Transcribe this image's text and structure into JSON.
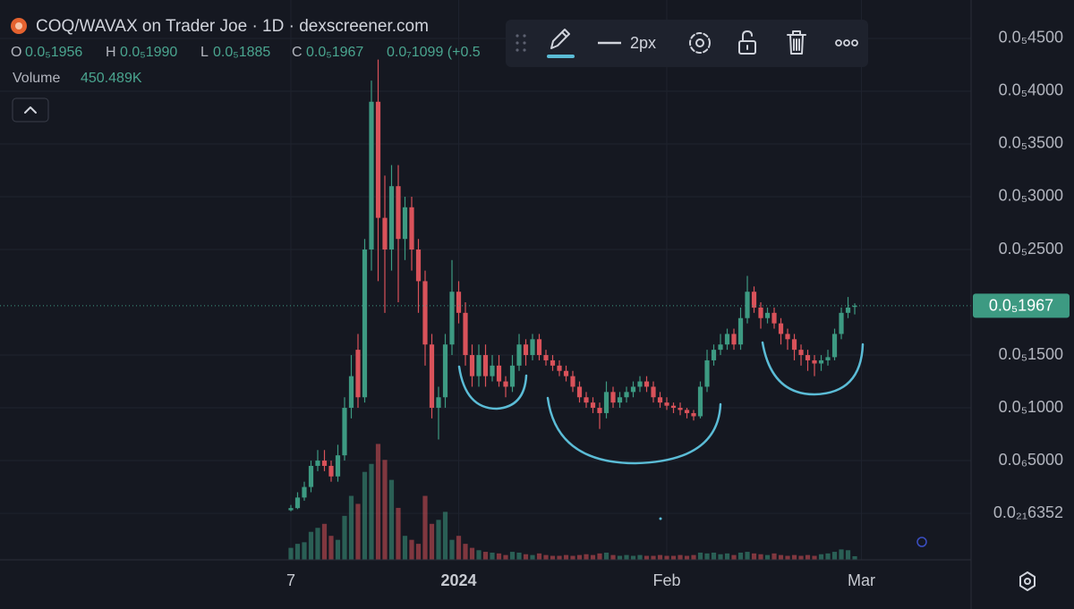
{
  "chart_data": {
    "type": "candlestick",
    "title": "COQ/WAVAX on Trader Joe · 1D · dexscreener.com",
    "legend": {
      "open_label": "O",
      "open": "0.0₅1956",
      "high_label": "H",
      "high": "0.0₅1990",
      "low_label": "L",
      "low": "0.0₅1885",
      "close_label": "C",
      "close": "0.0₅1967",
      "change": "0.0₇1099 (+0.5"
    },
    "volume_label": "Volume",
    "volume_value": "450.489K",
    "toolbar_width": "2px",
    "last_price_label": "0.0₅1967",
    "up_color": "#3d9a82",
    "down_color": "#d9525a",
    "grid": true,
    "categories": [
      null,
      null,
      null,
      null,
      null,
      null,
      null,
      null,
      null,
      null,
      null,
      null,
      null,
      null,
      null,
      null,
      null,
      null,
      null,
      null,
      null,
      null,
      null,
      null,
      null,
      null,
      null,
      null,
      null,
      null,
      null,
      null,
      null,
      null,
      null,
      null,
      null,
      null,
      null,
      null,
      null,
      null,
      null,
      null,
      null,
      null,
      null,
      null,
      null,
      null,
      null,
      null,
      null,
      null,
      null,
      null,
      null,
      null,
      null,
      null,
      null,
      null,
      null,
      null,
      null,
      null,
      null,
      null,
      null,
      null,
      null,
      null,
      null,
      null,
      null,
      null,
      null,
      null,
      null,
      null,
      null,
      null,
      null,
      null,
      null
    ],
    "open": [
      3e-08,
      5e-08,
      1.5e-07,
      2.5e-07,
      4.5e-07,
      5e-07,
      4.5e-07,
      3.5e-07,
      5.5e-07,
      1e-06,
      1.55e-06,
      1.1e-06,
      2.5e-06,
      3.9e-06,
      2.8e-06,
      2.5e-06,
      3.1e-06,
      2.6e-06,
      2.9e-06,
      2.5e-06,
      2.2e-06,
      1.6e-06,
      1e-06,
      1.1e-06,
      1.6e-06,
      2.1e-06,
      1.9e-06,
      1.5e-06,
      1.3e-06,
      1.5e-06,
      1.3e-06,
      1.4e-06,
      1.25e-06,
      1.2e-06,
      1.4e-06,
      1.6e-06,
      1.5e-06,
      1.65e-06,
      1.5e-06,
      1.45e-06,
      1.4e-06,
      1.35e-06,
      1.3e-06,
      1.2e-06,
      1.1e-06,
      1.05e-06,
      1e-06,
      9.5e-07,
      1.15e-06,
      1.05e-06,
      1.1e-06,
      1.15e-06,
      1.2e-06,
      1.25e-06,
      1.2e-06,
      1.1e-06,
      1.05e-06,
      1.02e-06,
      1e-06,
      9.8e-07,
      9.5e-07,
      9.2e-07,
      1.2e-06,
      1.45e-06,
      1.55e-06,
      1.6e-06,
      1.7e-06,
      1.6e-06,
      1.85e-06,
      2.1e-06,
      1.95e-06,
      1.85e-06,
      1.9e-06,
      1.8e-06,
      1.7e-06,
      1.65e-06,
      1.55e-06,
      1.5e-06,
      1.45e-06,
      1.42e-06,
      1.45e-06,
      1.48e-06,
      1.7e-06,
      1.9e-06,
      1.956e-06
    ],
    "high": [
      8e-08,
      2e-07,
      3e-07,
      5e-07,
      6e-07,
      6e-07,
      5e-07,
      6.5e-07,
      1.1e-06,
      1.5e-06,
      1.7e-06,
      2.6e-06,
      4.1e-06,
      4.3e-06,
      3.2e-06,
      3.3e-06,
      3.3e-06,
      3e-06,
      3e-06,
      2.6e-06,
      2.3e-06,
      1.7e-06,
      1.2e-06,
      1.7e-06,
      2.4e-06,
      2.2e-06,
      2e-06,
      1.6e-06,
      1.6e-06,
      1.6e-06,
      1.5e-06,
      1.5e-06,
      1.3e-06,
      1.5e-06,
      1.7e-06,
      1.65e-06,
      1.7e-06,
      1.7e-06,
      1.55e-06,
      1.5e-06,
      1.45e-06,
      1.4e-06,
      1.35e-06,
      1.25e-06,
      1.15e-06,
      1.1e-06,
      1.05e-06,
      1.25e-06,
      1.2e-06,
      1.15e-06,
      1.2e-06,
      1.25e-06,
      1.3e-06,
      1.3e-06,
      1.25e-06,
      1.15e-06,
      1.1e-06,
      1.05e-06,
      1.05e-06,
      1e-06,
      9.8e-07,
      1.25e-06,
      1.55e-06,
      1.6e-06,
      1.7e-06,
      1.75e-06,
      1.75e-06,
      1.95e-06,
      2.25e-06,
      2.15e-06,
      2e-06,
      1.95e-06,
      1.95e-06,
      1.85e-06,
      1.75e-06,
      1.7e-06,
      1.6e-06,
      1.55e-06,
      1.5e-06,
      1.5e-06,
      1.55e-06,
      1.75e-06,
      1.95e-06,
      2.05e-06,
      1.99e-06
    ],
    "low": [
      2e-08,
      4e-08,
      1.2e-07,
      2e-07,
      4e-07,
      4e-07,
      3e-07,
      3e-07,
      5e-07,
      9e-07,
      1e-06,
      1.05e-06,
      2.3e-06,
      2.2e-06,
      1.9e-06,
      2.3e-06,
      2e-06,
      2.4e-06,
      2.3e-06,
      1.9e-06,
      1.4e-06,
      9e-07,
      7e-07,
      1e-06,
      1.5e-06,
      1.8e-06,
      1.4e-06,
      1.2e-06,
      1.2e-06,
      1.2e-06,
      1.25e-06,
      1.2e-06,
      1.1e-06,
      1.15e-06,
      1.35e-06,
      1.4e-06,
      1.45e-06,
      1.45e-06,
      1.4e-06,
      1.35e-06,
      1.3e-06,
      1.25e-06,
      1.15e-06,
      1.05e-06,
      1e-06,
      9.5e-07,
      8e-07,
      9e-07,
      1e-06,
      1e-06,
      1.05e-06,
      1.1e-06,
      1.15e-06,
      1.15e-06,
      1.05e-06,
      1e-06,
      9.8e-07,
      9.5e-07,
      9.3e-07,
      9e-07,
      8.8e-07,
      9e-07,
      1.15e-06,
      1.4e-06,
      1.5e-06,
      1.55e-06,
      1.55e-06,
      1.55e-06,
      1.8e-06,
      1.9e-06,
      1.75e-06,
      1.8e-06,
      1.75e-06,
      1.6e-06,
      1.55e-06,
      1.45e-06,
      1.4e-06,
      1.35e-06,
      1.3e-06,
      1.35e-06,
      1.4e-06,
      1.45e-06,
      1.65e-06,
      1.85e-06,
      1.885e-06
    ],
    "close": [
      5e-08,
      1.5e-07,
      2.5e-07,
      4.5e-07,
      5e-07,
      4.5e-07,
      3.5e-07,
      5.5e-07,
      1e-06,
      1.3e-06,
      1.1e-06,
      2.5e-06,
      3.9e-06,
      2.8e-06,
      2.5e-06,
      3.1e-06,
      2.6e-06,
      2.9e-06,
      2.5e-06,
      2.2e-06,
      1.6e-06,
      1e-06,
      1.1e-06,
      1.6e-06,
      2.1e-06,
      1.9e-06,
      1.5e-06,
      1.3e-06,
      1.5e-06,
      1.3e-06,
      1.4e-06,
      1.25e-06,
      1.2e-06,
      1.4e-06,
      1.6e-06,
      1.5e-06,
      1.65e-06,
      1.5e-06,
      1.45e-06,
      1.4e-06,
      1.35e-06,
      1.3e-06,
      1.2e-06,
      1.1e-06,
      1.05e-06,
      1e-06,
      9.5e-07,
      1.15e-06,
      1.05e-06,
      1.1e-06,
      1.15e-06,
      1.2e-06,
      1.25e-06,
      1.2e-06,
      1.1e-06,
      1.05e-06,
      1.02e-06,
      1e-06,
      9.8e-07,
      9.5e-07,
      9.2e-07,
      1.2e-06,
      1.45e-06,
      1.55e-06,
      1.6e-06,
      1.7e-06,
      1.6e-06,
      1.85e-06,
      2.1e-06,
      1.95e-06,
      1.85e-06,
      1.9e-06,
      1.8e-06,
      1.7e-06,
      1.65e-06,
      1.55e-06,
      1.5e-06,
      1.45e-06,
      1.42e-06,
      1.45e-06,
      1.48e-06,
      1.7e-06,
      1.9e-06,
      1.95e-06,
      1.967e-06
    ],
    "volume": [
      1500000,
      2000000,
      2200000,
      3500000,
      4000000,
      4500000,
      3000000,
      2500000,
      5500000,
      8000000,
      7000000,
      11000000,
      12000000,
      14500000,
      12500000,
      10000000,
      6500000,
      3000000,
      2500000,
      2000000,
      8000000,
      4500000,
      5000000,
      6000000,
      2500000,
      3000000,
      2000000,
      1500000,
      1200000,
      1000000,
      900000,
      800000,
      600000,
      1000000,
      900000,
      700000,
      600000,
      800000,
      600000,
      500000,
      500000,
      600000,
      500000,
      600000,
      700000,
      600000,
      800000,
      900000,
      600000,
      500000,
      600000,
      500000,
      600000,
      500000,
      500000,
      600000,
      500000,
      500000,
      600000,
      500000,
      600000,
      900000,
      800000,
      900000,
      700000,
      800000,
      600000,
      900000,
      1000000,
      800000,
      700000,
      600000,
      800000,
      600000,
      500000,
      600000,
      500000,
      600000,
      500000,
      700000,
      800000,
      1000000,
      1300000,
      1200000,
      450489
    ],
    "vlim": [
      0,
      16000000
    ],
    "xlim": [
      -43.33,
      101.33
    ],
    "xticks": [
      {
        "value": 0,
        "label": "7"
      },
      {
        "value": 25,
        "label": "2024"
      },
      {
        "value": 56,
        "label": "Feb"
      },
      {
        "value": 85,
        "label": "Mar"
      }
    ],
    "ylim": [
      -4.4e-07,
      4.864e-06
    ],
    "yticks": [
      {
        "value": 4.5e-06,
        "label": "0.0₅4500"
      },
      {
        "value": 4e-06,
        "label": "0.0₅4000"
      },
      {
        "value": 3.5e-06,
        "label": "0.0₅3500"
      },
      {
        "value": 3e-06,
        "label": "0.0₅3000"
      },
      {
        "value": 2.5e-06,
        "label": "0.0₅2500"
      },
      {
        "value": 1.5e-06,
        "label": "0.0₅1500"
      },
      {
        "value": 1e-06,
        "label": "0.0₅1000"
      },
      {
        "value": 5e-07,
        "label": "0.0₆5000"
      },
      {
        "value": 6.352e-22,
        "label": "0.0₂₁6352"
      }
    ]
  }
}
